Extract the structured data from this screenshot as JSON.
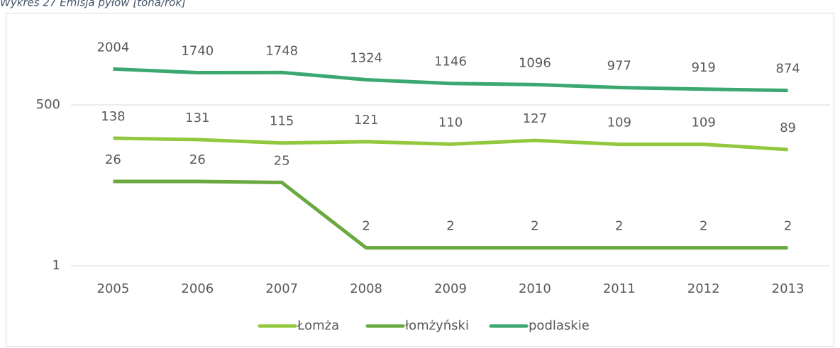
{
  "chart_data": {
    "type": "line",
    "title": "Wykres 27 Emisja pyłów [tona/rok]",
    "categories": [
      "2005",
      "2006",
      "2007",
      "2008",
      "2009",
      "2010",
      "2011",
      "2012",
      "2013"
    ],
    "log_scale": true,
    "ylim": [
      1,
      10000
    ],
    "yticks": [
      1,
      500
    ],
    "grid": true,
    "legend": "bottom",
    "series": [
      {
        "name": "Łomża",
        "color": "#92c83e",
        "values": [
          138,
          131,
          115,
          121,
          110,
          127,
          109,
          109,
          89
        ]
      },
      {
        "name": "łomżyński",
        "color": "#6aa840",
        "values": [
          26,
          26,
          25,
          2,
          2,
          2,
          2,
          2,
          2
        ]
      },
      {
        "name": "podlaskie",
        "color": "#3aa870",
        "values": [
          2004,
          1740,
          1748,
          1324,
          1146,
          1096,
          977,
          919,
          874
        ]
      }
    ]
  }
}
